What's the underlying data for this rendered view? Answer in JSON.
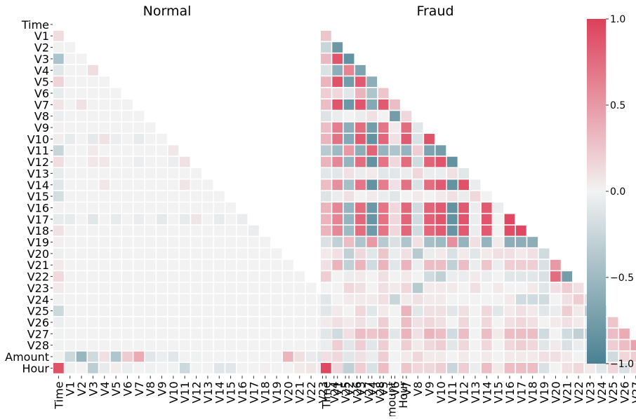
{
  "chart_data": [
    {
      "type": "heatmap",
      "title": "Normal",
      "variables": [
        "Time",
        "V1",
        "V2",
        "V3",
        "V4",
        "V5",
        "V6",
        "V7",
        "V8",
        "V9",
        "V10",
        "V11",
        "V12",
        "V13",
        "V14",
        "V15",
        "V16",
        "V17",
        "V18",
        "V19",
        "V20",
        "V21",
        "V22",
        "V23",
        "V24",
        "V25",
        "V26",
        "V27",
        "V28",
        "Amount",
        "Hour"
      ],
      "x_tick_labels": [
        "Time",
        "V1",
        "V2",
        "V3",
        "V4",
        "V5",
        "V6",
        "V7",
        "V8",
        "V9",
        "V10",
        "V11",
        "V12",
        "V13",
        "V14",
        "V15",
        "V16",
        "V17",
        "V18",
        "V19",
        "V20",
        "V21",
        "V22",
        "V23",
        "V24",
        "V25",
        "V26",
        "V27",
        "V28",
        "Amount",
        "Hour"
      ],
      "y_tick_labels": [
        "Time",
        "V1",
        "V2",
        "V3",
        "V4",
        "V5",
        "V6",
        "V7",
        "V8",
        "V9",
        "V10",
        "V11",
        "V12",
        "V13",
        "V14",
        "V15",
        "V16",
        "V17",
        "V18",
        "V19",
        "V20",
        "V21",
        "V22",
        "V23",
        "V24",
        "V25",
        "V26",
        "V27",
        "V28",
        "Amount",
        "Hour"
      ],
      "mask": "upper-triangle",
      "lower_triangle_values": [
        [],
        [
          0.12
        ],
        [
          -0.01,
          0.0
        ],
        [
          -0.42,
          0.0,
          0.0
        ],
        [
          -0.1,
          0.0,
          0.0,
          0.12
        ],
        [
          0.17,
          0.0,
          0.0,
          0.0,
          0.0
        ],
        [
          -0.06,
          0.0,
          0.0,
          0.0,
          0.0,
          0.0
        ],
        [
          0.08,
          0.0,
          0.09,
          0.0,
          0.0,
          0.0,
          0.0
        ],
        [
          -0.04,
          0.0,
          0.0,
          0.0,
          0.0,
          0.0,
          0.0,
          0.0
        ],
        [
          0.01,
          0.0,
          0.0,
          0.0,
          0.0,
          0.0,
          0.0,
          0.0,
          0.0
        ],
        [
          0.03,
          -0.06,
          0.0,
          -0.08,
          0.09,
          -0.04,
          0.0,
          -0.06,
          0.0,
          0.0
        ],
        [
          -0.25,
          0.0,
          0.0,
          0.05,
          0.0,
          0.0,
          0.0,
          0.0,
          0.0,
          0.0,
          0.06
        ],
        [
          0.12,
          0.0,
          0.0,
          0.06,
          0.06,
          0.0,
          0.0,
          -0.04,
          0.0,
          0.0,
          -0.04,
          0.09
        ],
        [
          -0.06,
          0.0,
          0.0,
          0.0,
          0.0,
          0.0,
          0.0,
          0.0,
          0.0,
          0.0,
          0.0,
          0.0,
          0.0
        ],
        [
          -0.1,
          0.0,
          0.0,
          0.0,
          0.06,
          0.0,
          0.0,
          0.0,
          0.0,
          0.0,
          0.0,
          0.08,
          0.0,
          0.0
        ],
        [
          -0.18,
          0.0,
          0.0,
          0.0,
          0.0,
          0.0,
          0.0,
          0.0,
          0.0,
          0.0,
          0.0,
          0.0,
          0.0,
          0.0,
          0.0
        ],
        [
          0.01,
          0.0,
          0.0,
          0.0,
          0.0,
          0.0,
          0.0,
          0.0,
          0.0,
          0.0,
          0.0,
          0.0,
          0.0,
          0.0,
          0.0,
          0.0
        ],
        [
          -0.06,
          -0.06,
          0.0,
          -0.1,
          0.0,
          -0.06,
          0.0,
          -0.05,
          0.0,
          -0.08,
          0.0,
          -0.06,
          0.08,
          0.0,
          -0.06,
          0.0,
          -0.05
        ],
        [
          0.09,
          0.0,
          0.0,
          0.0,
          0.0,
          0.0,
          0.0,
          0.0,
          0.0,
          0.0,
          0.0,
          0.0,
          0.0,
          0.0,
          0.0,
          0.0,
          0.0,
          -0.05
        ],
        [
          0.02,
          0.0,
          0.0,
          0.0,
          0.0,
          0.0,
          0.0,
          0.0,
          0.0,
          0.0,
          0.0,
          0.0,
          0.0,
          0.0,
          0.0,
          0.0,
          0.0,
          0.0,
          0.0
        ],
        [
          -0.03,
          0.0,
          0.0,
          0.0,
          0.0,
          0.0,
          0.0,
          0.0,
          0.0,
          0.0,
          0.0,
          0.0,
          0.0,
          0.0,
          0.0,
          0.0,
          0.0,
          0.0,
          0.0,
          0.0
        ],
        [
          0.05,
          0.0,
          0.0,
          0.0,
          0.0,
          0.0,
          0.0,
          0.0,
          0.0,
          0.0,
          0.0,
          0.0,
          0.0,
          0.0,
          0.0,
          0.0,
          0.0,
          0.0,
          0.0,
          0.0,
          0.0
        ],
        [
          0.14,
          0.0,
          0.0,
          0.0,
          0.0,
          0.0,
          0.0,
          0.0,
          0.0,
          0.0,
          0.0,
          0.0,
          0.0,
          0.0,
          0.0,
          0.0,
          0.0,
          0.0,
          0.0,
          0.0,
          0.0,
          0.0
        ],
        [
          0.05,
          0.0,
          0.0,
          0.0,
          0.0,
          0.0,
          0.0,
          0.0,
          0.0,
          0.0,
          0.0,
          0.0,
          0.0,
          0.0,
          0.0,
          0.0,
          0.0,
          0.0,
          0.0,
          0.0,
          0.0,
          0.0,
          0.0
        ],
        [
          -0.02,
          0.0,
          0.0,
          0.0,
          0.0,
          0.0,
          0.0,
          0.0,
          0.0,
          0.0,
          0.0,
          0.0,
          0.0,
          0.0,
          0.0,
          0.0,
          0.0,
          0.0,
          0.0,
          0.0,
          0.0,
          0.0,
          0.0,
          0.0
        ],
        [
          -0.23,
          0.0,
          0.0,
          0.0,
          0.0,
          0.0,
          0.0,
          0.0,
          0.0,
          0.0,
          0.0,
          0.0,
          0.0,
          0.0,
          0.0,
          0.0,
          0.0,
          0.0,
          0.0,
          0.0,
          0.0,
          0.0,
          0.0,
          0.0,
          0.0
        ],
        [
          -0.04,
          0.0,
          0.0,
          0.0,
          0.0,
          0.0,
          0.0,
          0.0,
          0.0,
          0.0,
          0.0,
          0.0,
          0.0,
          0.0,
          0.0,
          0.0,
          0.0,
          0.0,
          0.0,
          0.0,
          0.0,
          0.0,
          0.0,
          0.0,
          0.0,
          0.0
        ],
        [
          -0.01,
          0.0,
          0.0,
          0.0,
          0.0,
          0.0,
          0.0,
          0.0,
          0.0,
          0.0,
          0.0,
          0.0,
          0.0,
          0.0,
          0.0,
          0.0,
          0.0,
          0.0,
          0.0,
          0.0,
          0.0,
          0.0,
          0.0,
          0.0,
          0.0,
          0.0,
          0.0
        ],
        [
          -0.01,
          0.0,
          0.0,
          0.0,
          0.0,
          0.0,
          0.0,
          0.0,
          0.0,
          0.0,
          0.0,
          0.0,
          0.0,
          0.0,
          0.0,
          0.0,
          0.0,
          0.0,
          0.0,
          0.0,
          0.0,
          0.0,
          0.0,
          0.0,
          0.0,
          0.0,
          0.0,
          0.0
        ],
        [
          -0.01,
          -0.23,
          -0.53,
          -0.21,
          0.1,
          -0.39,
          0.22,
          0.4,
          -0.1,
          -0.04,
          -0.1,
          0.0,
          -0.01,
          0.0,
          0.0,
          0.0,
          0.0,
          0.0,
          0.0,
          0.0,
          0.34,
          0.11,
          -0.06,
          -0.11,
          0.0,
          -0.05,
          0.0,
          0.03,
          0.01
        ],
        [
          0.9,
          -0.02,
          0.0,
          -0.32,
          -0.06,
          0.03,
          -0.04,
          0.0,
          -0.02,
          0.0,
          -0.01,
          -0.23,
          0.0,
          0.0,
          -0.11,
          -0.1,
          0.0,
          0.0,
          0.02,
          0.0,
          0.0,
          0.05,
          0.07,
          0.04,
          0.0,
          -0.2,
          -0.05,
          0.0,
          0.0,
          -0.02
        ]
      ],
      "value_range": [
        -1.0,
        1.0
      ]
    },
    {
      "type": "heatmap",
      "title": "Fraud",
      "variables": [
        "Time",
        "V1",
        "V2",
        "V3",
        "V4",
        "V5",
        "V6",
        "V7",
        "V8",
        "V9",
        "V10",
        "V11",
        "V12",
        "V13",
        "V14",
        "V15",
        "V16",
        "V17",
        "V18",
        "V19",
        "V20",
        "V21",
        "V22",
        "V23",
        "V24",
        "V25",
        "V26",
        "V27",
        "V28",
        "Amount",
        "Hour"
      ],
      "x_tick_labels": [
        "Time",
        "V1",
        "V2",
        "V3",
        "V4",
        "V5",
        "V6",
        "V7",
        "V8",
        "V9",
        "V10",
        "V11",
        "V12",
        "V13",
        "V14",
        "V15",
        "V16",
        "V17",
        "V18",
        "V19",
        "V20",
        "V21",
        "V22",
        "V23",
        "V24",
        "V25",
        "V26",
        "V27",
        "V28",
        "Amount",
        "Hour"
      ],
      "y_tick_labels": [],
      "mask": "upper-triangle",
      "lower_triangle_values": [
        [],
        [
          0.25
        ],
        [
          -0.25,
          -0.8
        ],
        [
          0.32,
          0.88,
          -0.85
        ],
        [
          -0.15,
          -0.6,
          0.62,
          -0.7
        ],
        [
          0.35,
          0.9,
          -0.75,
          0.85,
          -0.6
        ],
        [
          0.2,
          0.15,
          -0.1,
          0.35,
          -0.4,
          0.25
        ],
        [
          0.3,
          0.88,
          -0.8,
          0.88,
          -0.65,
          0.85,
          0.3
        ],
        [
          -0.12,
          -0.05,
          0.0,
          -0.05,
          0.1,
          0.0,
          -0.75,
          0.15
        ],
        [
          0.3,
          0.65,
          -0.6,
          0.75,
          -0.75,
          0.7,
          0.05,
          0.75,
          -0.1
        ],
        [
          0.35,
          0.72,
          -0.65,
          0.85,
          -0.85,
          0.78,
          0.1,
          0.85,
          -0.15,
          0.9
        ],
        [
          -0.35,
          -0.5,
          0.5,
          -0.6,
          0.8,
          -0.55,
          -0.4,
          -0.55,
          0.2,
          -0.7,
          -0.75
        ],
        [
          0.35,
          0.6,
          -0.55,
          0.75,
          -0.85,
          0.7,
          0.15,
          0.75,
          -0.2,
          0.8,
          0.88,
          -0.85
        ],
        [
          -0.1,
          -0.1,
          0.1,
          -0.05,
          0.05,
          -0.1,
          -0.1,
          -0.05,
          0.15,
          -0.05,
          -0.05,
          0.1,
          -0.1
        ],
        [
          0.3,
          0.55,
          -0.45,
          0.7,
          -0.85,
          0.65,
          0.1,
          0.72,
          -0.15,
          0.75,
          0.85,
          -0.85,
          0.9,
          -0.05
        ],
        [
          -0.12,
          -0.05,
          0.1,
          0.0,
          0.05,
          -0.05,
          -0.1,
          0.0,
          0.05,
          0.0,
          0.05,
          0.1,
          -0.05,
          0.15,
          0.0
        ],
        [
          0.35,
          0.6,
          -0.55,
          0.75,
          -0.8,
          0.7,
          0.15,
          0.78,
          -0.2,
          0.8,
          0.85,
          -0.85,
          0.85,
          -0.05,
          0.85,
          -0.05
        ],
        [
          0.35,
          0.62,
          -0.55,
          0.78,
          -0.82,
          0.72,
          0.15,
          0.8,
          -0.2,
          0.82,
          0.88,
          -0.85,
          0.88,
          -0.05,
          0.88,
          0.0,
          0.95
        ],
        [
          0.35,
          0.6,
          -0.5,
          0.75,
          -0.78,
          0.7,
          0.15,
          0.78,
          -0.2,
          0.78,
          0.85,
          -0.82,
          0.85,
          -0.05,
          0.85,
          0.0,
          0.92,
          0.95
        ],
        [
          -0.15,
          -0.3,
          0.3,
          -0.4,
          0.5,
          -0.35,
          -0.15,
          -0.4,
          0.1,
          -0.45,
          -0.5,
          0.55,
          -0.55,
          0.1,
          -0.55,
          0.05,
          -0.6,
          -0.6,
          -0.6
        ],
        [
          0.05,
          0.1,
          -0.3,
          0.15,
          -0.1,
          0.25,
          -0.05,
          0.1,
          -0.35,
          -0.05,
          0.05,
          -0.15,
          0.05,
          -0.1,
          0.05,
          0.1,
          0.1,
          0.05,
          0.1,
          -0.2
        ],
        [
          0.1,
          0.35,
          -0.3,
          0.35,
          -0.2,
          0.35,
          -0.1,
          0.35,
          -0.05,
          0.3,
          0.3,
          -0.3,
          0.3,
          -0.05,
          0.25,
          -0.05,
          0.2,
          0.2,
          0.2,
          -0.15,
          0.5
        ],
        [
          0.2,
          0.0,
          -0.05,
          0.05,
          0.0,
          0.1,
          0.0,
          0.05,
          0.0,
          -0.2,
          -0.3,
          -0.05,
          -0.05,
          0.05,
          -0.05,
          0.0,
          -0.1,
          -0.1,
          -0.1,
          -0.15,
          0.75,
          -0.75
        ],
        [
          0.0,
          0.0,
          0.15,
          0.1,
          0.0,
          0.1,
          0.05,
          0.15,
          -0.35,
          0.05,
          0.05,
          0.05,
          0.0,
          0.1,
          0.0,
          0.05,
          0.0,
          0.0,
          0.05,
          -0.1,
          0.1,
          0.2,
          0.1
        ],
        [
          -0.1,
          0.0,
          0.05,
          0.05,
          0.05,
          0.1,
          -0.25,
          0.05,
          0.1,
          0.05,
          0.05,
          0.0,
          0.0,
          0.0,
          0.0,
          0.0,
          0.05,
          -0.2,
          -0.2,
          -0.2,
          0.0,
          0.1,
          0.2,
          0.1
        ],
        [
          -0.1,
          0.05,
          0.0,
          0.15,
          -0.1,
          0.05,
          0.0,
          0.35,
          -0.1,
          0.1,
          0.1,
          -0.1,
          0.1,
          0.0,
          0.15,
          -0.1,
          0.05,
          0.1,
          0.05,
          -0.1,
          -0.05,
          0.2,
          0.05,
          -0.3,
          0.15
        ],
        [
          0.05,
          0.1,
          0.05,
          0.1,
          -0.05,
          0.2,
          0.0,
          0.3,
          0.1,
          0.15,
          0.1,
          0.0,
          0.15,
          0.0,
          0.15,
          0.0,
          0.1,
          0.15,
          0.1,
          0.0,
          0.05,
          0.1,
          0.05,
          0.0,
          0.15,
          0.25
        ],
        [
          -0.1,
          -0.2,
          0.1,
          0.3,
          0.25,
          0.3,
          -0.1,
          0.35,
          0.1,
          0.35,
          0.3,
          -0.2,
          0.3,
          0.0,
          0.3,
          0.05,
          0.3,
          0.3,
          0.3,
          -0.2,
          0.0,
          -0.2,
          -0.3,
          -0.2,
          0.35,
          0.3,
          0.4
        ],
        [
          -0.05,
          0.2,
          -0.1,
          0.2,
          -0.1,
          0.2,
          0.0,
          0.2,
          0.05,
          0.15,
          0.2,
          -0.1,
          0.15,
          0.0,
          0.15,
          0.0,
          0.15,
          0.2,
          0.15,
          -0.1,
          0.05,
          -0.15,
          -0.05,
          -0.05,
          0.15,
          0.2,
          0.3,
          0.45
        ],
        [
          0.1,
          0.15,
          -0.1,
          0.1,
          -0.05,
          0.2,
          0.0,
          0.05,
          0.15,
          0.05,
          0.05,
          0.0,
          0.05,
          0.0,
          0.05,
          0.0,
          0.05,
          0.05,
          0.05,
          0.1,
          0.1,
          0.05,
          0.0,
          0.05,
          0.1,
          -0.2,
          0.15,
          0.2,
          -0.1
        ],
        [
          0.95,
          0.15,
          -0.3,
          0.2,
          -0.15,
          0.3,
          0.0,
          0.25,
          0.15,
          0.15,
          0.2,
          -0.25,
          0.2,
          -0.05,
          0.3,
          0.05,
          0.3,
          0.3,
          0.3,
          -0.15,
          0.0,
          0.1,
          0.15,
          0.05,
          -0.1,
          0.15,
          -0.15,
          0.1,
          0.05,
          0.15
        ]
      ],
      "value_range": [
        -1.0,
        1.0
      ]
    }
  ],
  "colorbar": {
    "ticks": [
      "1.0",
      "0.5",
      "0.0",
      "−0.5",
      "−1.0"
    ],
    "colors": {
      "negative": "#4a8192",
      "neutral": "#f2f2f2",
      "positive": "#dd4059"
    }
  }
}
